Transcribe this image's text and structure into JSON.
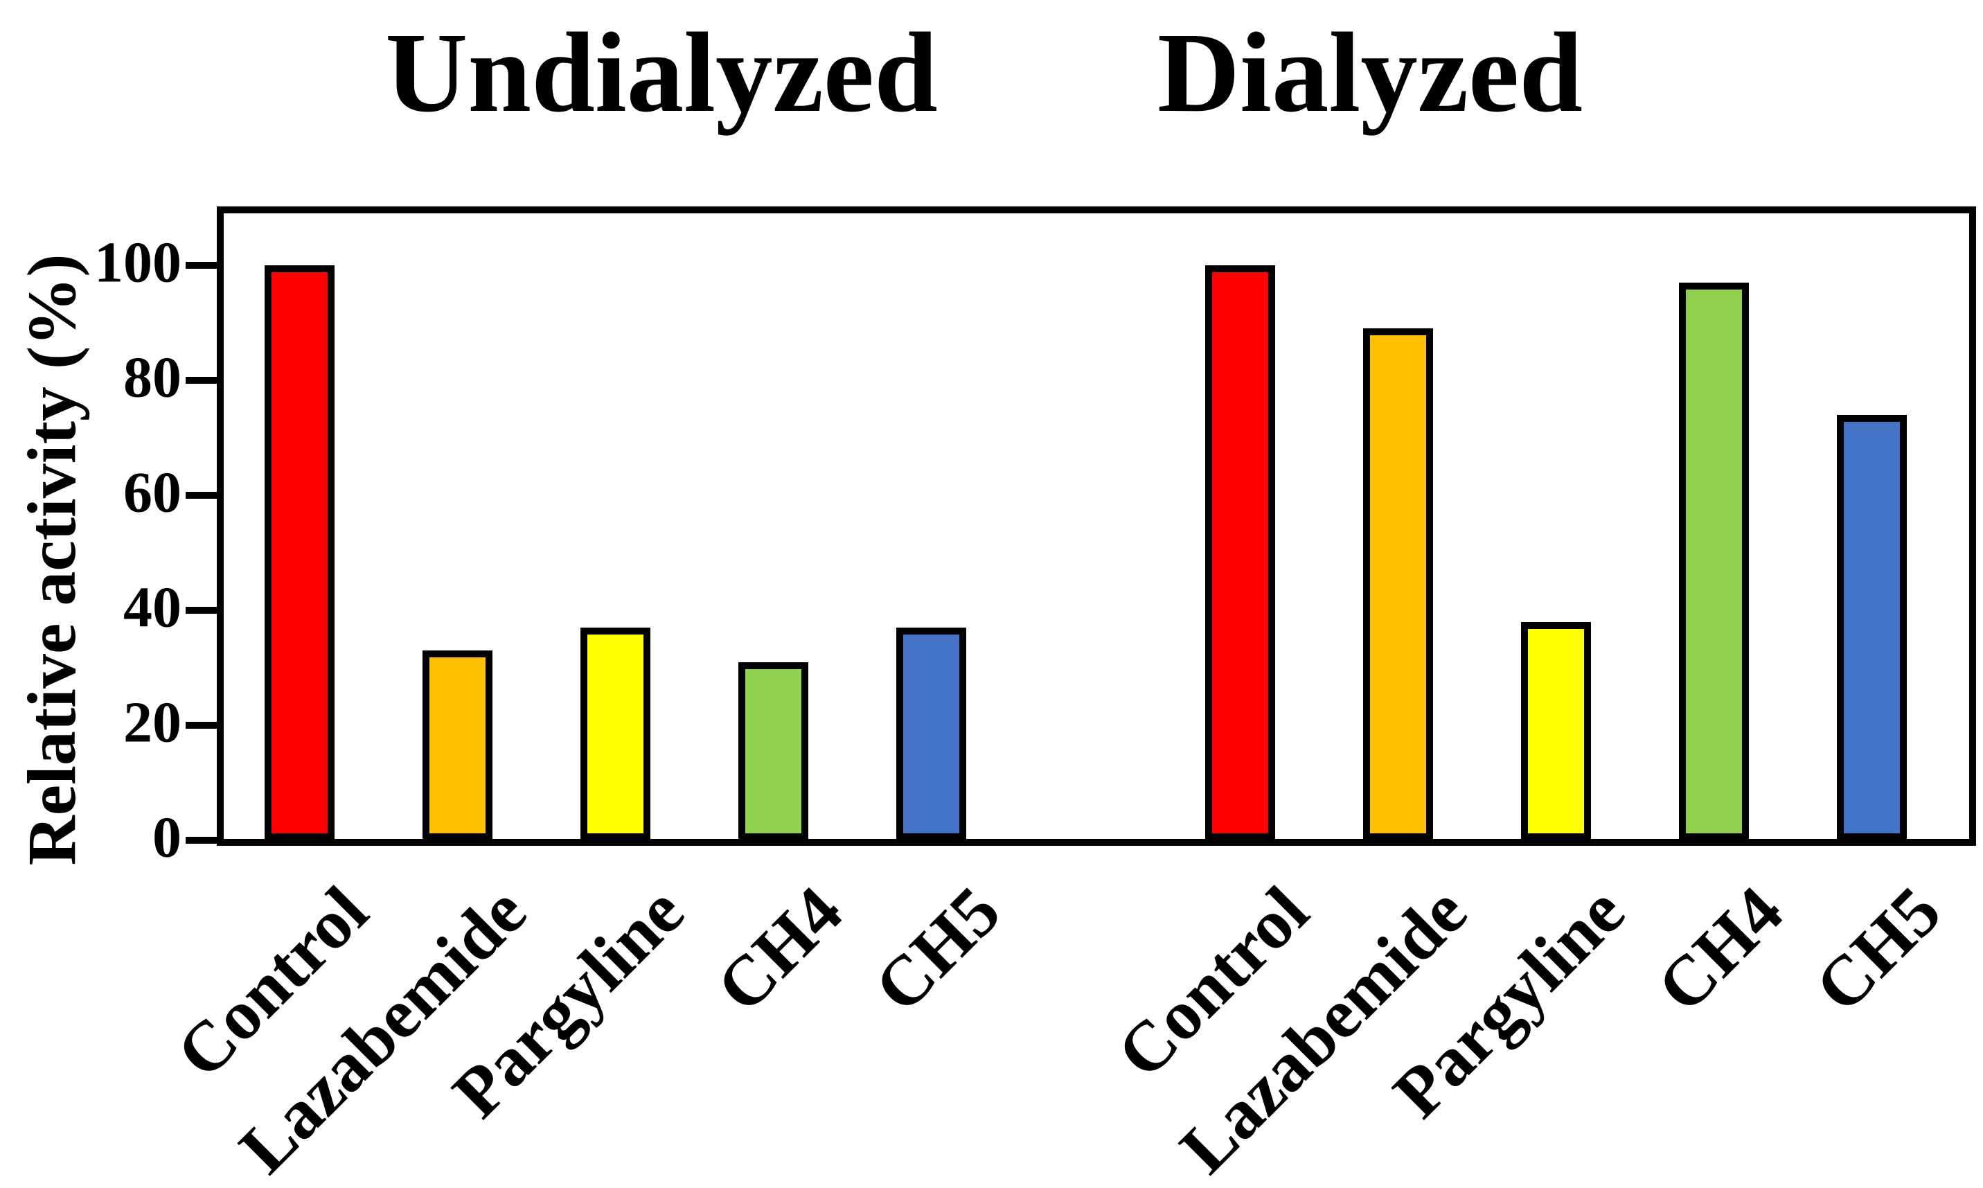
{
  "chart_data": {
    "type": "bar",
    "title_left": "Undialyzed",
    "title_right": "Dialyzed",
    "ylabel": "Relative activity (%)",
    "ylim": [
      0,
      110
    ],
    "yticks": [
      0,
      20,
      40,
      60,
      80,
      100
    ],
    "grid": false,
    "legend": "none",
    "categories": [
      "Control",
      "Lazabemide",
      "Pargyline",
      "CH4",
      "CH5"
    ],
    "groups": [
      {
        "title": "Undialyzed",
        "categories": [
          "Control",
          "Lazabemide",
          "Pargyline",
          "CH4",
          "CH5"
        ],
        "values": [
          100,
          33,
          37,
          31,
          37
        ]
      },
      {
        "title": "Dialyzed",
        "categories": [
          "Control",
          "Lazabemide",
          "Pargyline",
          "CH4",
          "CH5"
        ],
        "values": [
          100,
          89,
          38,
          97,
          74
        ]
      }
    ],
    "bar_colors": [
      "#FF0000",
      "#FFC000",
      "#FFFF00",
      "#92D050",
      "#4472C4"
    ],
    "bar_border_color": "#000000",
    "axis_color": "#000000"
  }
}
